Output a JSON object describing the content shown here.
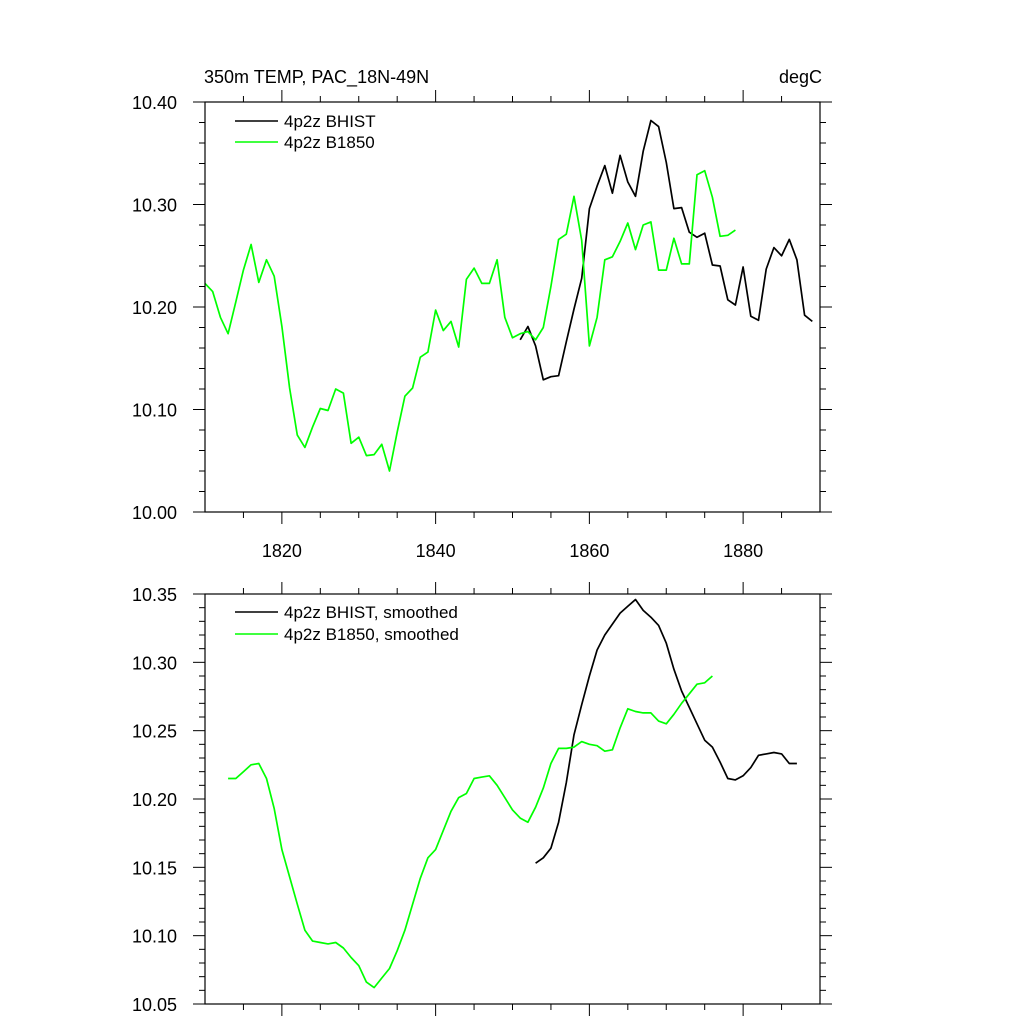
{
  "colors": {
    "bhist": "#000000",
    "b1850": "#00ff00",
    "axis": "#000000",
    "background": "#ffffff"
  },
  "chart_data": [
    {
      "type": "line",
      "title": "350m TEMP, PAC_18N-49N",
      "units": "degC",
      "xlim": [
        1810,
        1890
      ],
      "ylim": [
        10.0,
        10.4
      ],
      "xticks": [
        1820,
        1840,
        1860,
        1880
      ],
      "xtick_labels": [
        "1820",
        "1840",
        "1860",
        "1880"
      ],
      "yticks": [
        10.0,
        10.1,
        10.2,
        10.3,
        10.4
      ],
      "ytick_labels": [
        "10.00",
        "10.10",
        "10.20",
        "10.30",
        "10.40"
      ],
      "legend_position": "top-left",
      "series": [
        {
          "name": "4p2z BHIST",
          "color": "#000000",
          "x": [
            1851,
            1852,
            1853,
            1854,
            1855,
            1856,
            1857,
            1858,
            1859,
            1860,
            1861,
            1862,
            1863,
            1864,
            1865,
            1866,
            1867,
            1868,
            1869,
            1870,
            1871,
            1872,
            1873,
            1874,
            1875,
            1876,
            1877,
            1878,
            1879,
            1880,
            1881,
            1882,
            1883,
            1884,
            1885,
            1886,
            1887,
            1888,
            1889
          ],
          "y": [
            10.168,
            10.181,
            10.162,
            10.129,
            10.132,
            10.133,
            10.166,
            10.198,
            10.228,
            10.296,
            10.318,
            10.338,
            10.311,
            10.348,
            10.322,
            10.308,
            10.352,
            10.382,
            10.376,
            10.341,
            10.296,
            10.297,
            10.273,
            10.268,
            10.272,
            10.241,
            10.24,
            10.207,
            10.202,
            10.239,
            10.191,
            10.187,
            10.237,
            10.258,
            10.25,
            10.266,
            10.246,
            10.192,
            10.186
          ]
        },
        {
          "name": "4p2z B1850",
          "color": "#00ff00",
          "x": [
            1810,
            1811,
            1812,
            1813,
            1814,
            1815,
            1816,
            1817,
            1818,
            1819,
            1820,
            1821,
            1822,
            1823,
            1824,
            1825,
            1826,
            1827,
            1828,
            1829,
            1830,
            1831,
            1832,
            1833,
            1834,
            1835,
            1836,
            1837,
            1838,
            1839,
            1840,
            1841,
            1842,
            1843,
            1844,
            1845,
            1846,
            1847,
            1848,
            1849,
            1850,
            1851,
            1852,
            1853,
            1854,
            1855,
            1856,
            1857,
            1858,
            1859,
            1860,
            1861,
            1862,
            1863,
            1864,
            1865,
            1866,
            1867,
            1868,
            1869,
            1870,
            1871,
            1872,
            1873,
            1874,
            1875,
            1876,
            1877,
            1878,
            1879
          ],
          "y": [
            10.223,
            10.215,
            10.19,
            10.174,
            10.205,
            10.236,
            10.261,
            10.224,
            10.246,
            10.23,
            10.181,
            10.121,
            10.075,
            10.063,
            10.083,
            10.101,
            10.099,
            10.12,
            10.116,
            10.067,
            10.073,
            10.055,
            10.056,
            10.066,
            10.04,
            10.078,
            10.113,
            10.121,
            10.151,
            10.156,
            10.197,
            10.177,
            10.186,
            10.161,
            10.227,
            10.238,
            10.223,
            10.223,
            10.246,
            10.19,
            10.17,
            10.174,
            10.176,
            10.168,
            10.18,
            10.22,
            10.266,
            10.271,
            10.308,
            10.265,
            10.162,
            10.19,
            10.246,
            10.249,
            10.264,
            10.282,
            10.256,
            10.28,
            10.283,
            10.236,
            10.236,
            10.267,
            10.242,
            10.242,
            10.329,
            10.333,
            10.307,
            10.269,
            10.27,
            10.275
          ]
        }
      ]
    },
    {
      "type": "line",
      "xlim": [
        1810,
        1890
      ],
      "ylim": [
        10.05,
        10.35
      ],
      "xticks": [
        1820,
        1840,
        1860,
        1880
      ],
      "yticks": [
        10.05,
        10.1,
        10.15,
        10.2,
        10.25,
        10.3,
        10.35
      ],
      "ytick_labels": [
        "10.05",
        "10.10",
        "10.15",
        "10.20",
        "10.25",
        "10.30",
        "10.35"
      ],
      "legend_position": "top-left",
      "series": [
        {
          "name": "4p2z BHIST, smoothed",
          "color": "#000000",
          "x": [
            1853,
            1854,
            1855,
            1856,
            1857,
            1858,
            1859,
            1860,
            1861,
            1862,
            1863,
            1864,
            1865,
            1866,
            1867,
            1868,
            1869,
            1870,
            1871,
            1872,
            1873,
            1874,
            1875,
            1876,
            1877,
            1878,
            1879,
            1880,
            1881,
            1882,
            1883,
            1884,
            1885,
            1886,
            1887
          ],
          "y": [
            10.153,
            10.157,
            10.164,
            10.183,
            10.212,
            10.247,
            10.269,
            10.29,
            10.309,
            10.32,
            10.328,
            10.336,
            10.341,
            10.346,
            10.338,
            10.333,
            10.327,
            10.314,
            10.295,
            10.279,
            10.267,
            10.255,
            10.243,
            10.238,
            10.227,
            10.215,
            10.214,
            10.217,
            10.223,
            10.232,
            10.233,
            10.234,
            10.233,
            10.226,
            10.226
          ]
        },
        {
          "name": "4p2z B1850, smoothed",
          "color": "#00ff00",
          "x": [
            1813,
            1814,
            1815,
            1816,
            1817,
            1818,
            1819,
            1820,
            1821,
            1822,
            1823,
            1824,
            1825,
            1826,
            1827,
            1828,
            1829,
            1830,
            1831,
            1832,
            1833,
            1834,
            1835,
            1836,
            1837,
            1838,
            1839,
            1840,
            1841,
            1842,
            1843,
            1844,
            1845,
            1846,
            1847,
            1848,
            1849,
            1850,
            1851,
            1852,
            1853,
            1854,
            1855,
            1856,
            1857,
            1858,
            1859,
            1860,
            1861,
            1862,
            1863,
            1864,
            1865,
            1866,
            1867,
            1868,
            1869,
            1870,
            1871,
            1872,
            1873,
            1874,
            1875,
            1876
          ],
          "y": [
            10.215,
            10.215,
            10.22,
            10.225,
            10.226,
            10.215,
            10.193,
            10.163,
            10.143,
            10.123,
            10.104,
            10.096,
            10.095,
            10.094,
            10.095,
            10.091,
            10.084,
            10.078,
            10.066,
            10.062,
            10.069,
            10.076,
            10.089,
            10.104,
            10.123,
            10.142,
            10.157,
            10.163,
            10.177,
            10.191,
            10.201,
            10.204,
            10.215,
            10.216,
            10.217,
            10.21,
            10.201,
            10.192,
            10.186,
            10.183,
            10.194,
            10.208,
            10.226,
            10.237,
            10.237,
            10.238,
            10.242,
            10.24,
            10.239,
            10.235,
            10.236,
            10.252,
            10.266,
            10.264,
            10.263,
            10.263,
            10.257,
            10.255,
            10.262,
            10.27,
            10.277,
            10.284,
            10.285,
            10.29
          ]
        }
      ]
    }
  ]
}
